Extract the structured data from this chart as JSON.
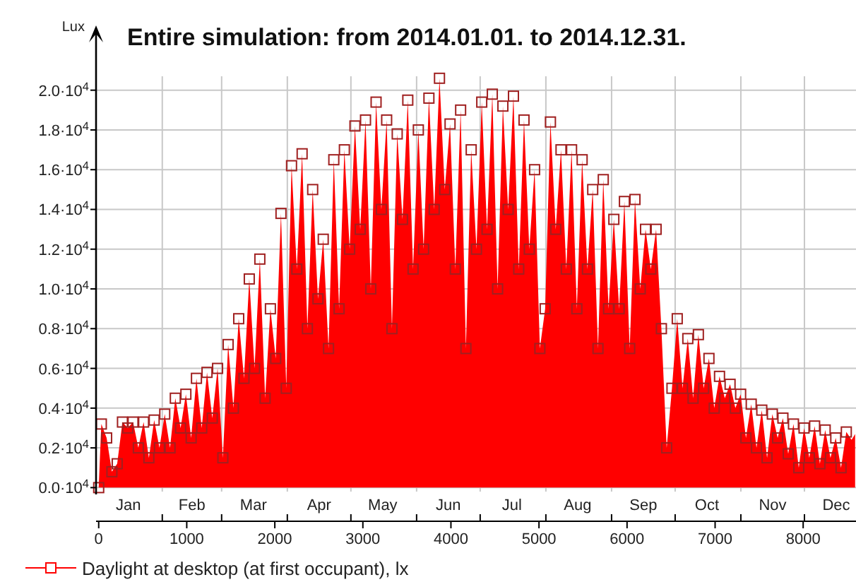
{
  "chart_data": {
    "type": "area",
    "title": "Entire simulation: from 2014.01.01. to 2014.12.31.",
    "ylabel": "Lux",
    "x": [
      0,
      30,
      90,
      150,
      210,
      270,
      330,
      390,
      450,
      510,
      570,
      630,
      690,
      750,
      810,
      870,
      930,
      990,
      1050,
      1110,
      1170,
      1230,
      1290,
      1350,
      1410,
      1470,
      1530,
      1590,
      1650,
      1710,
      1770,
      1830,
      1890,
      1950,
      2010,
      2070,
      2130,
      2190,
      2250,
      2310,
      2370,
      2430,
      2490,
      2550,
      2610,
      2670,
      2730,
      2790,
      2850,
      2910,
      2970,
      3030,
      3090,
      3150,
      3210,
      3270,
      3330,
      3390,
      3450,
      3510,
      3570,
      3630,
      3690,
      3750,
      3810,
      3870,
      3930,
      3990,
      4050,
      4110,
      4170,
      4230,
      4290,
      4350,
      4410,
      4470,
      4530,
      4590,
      4650,
      4710,
      4770,
      4830,
      4890,
      4950,
      5010,
      5070,
      5130,
      5190,
      5250,
      5310,
      5370,
      5430,
      5490,
      5550,
      5610,
      5670,
      5730,
      5790,
      5850,
      5910,
      5970,
      6030,
      6090,
      6150,
      6210,
      6270,
      6330,
      6390,
      6450,
      6510,
      6570,
      6630,
      6690,
      6750,
      6810,
      6870,
      6930,
      6990,
      7050,
      7110,
      7170,
      7230,
      7290,
      7350,
      7410,
      7470,
      7530,
      7590,
      7650,
      7710,
      7770,
      7830,
      7890,
      7950,
      8010,
      8070,
      8130,
      8190,
      8250,
      8310,
      8370,
      8430,
      8490,
      8550,
      8590
    ],
    "series": [
      {
        "name": "Daylight at desktop (at first occupant), lx",
        "color": "#ff0000",
        "values": [
          0,
          3200,
          2500,
          800,
          1200,
          3300,
          3000,
          3300,
          2000,
          3300,
          1500,
          3400,
          2000,
          3700,
          2000,
          4500,
          3000,
          4700,
          2500,
          5500,
          3000,
          5800,
          3500,
          6000,
          1500,
          7200,
          4000,
          8500,
          5500,
          10500,
          6000,
          11500,
          4500,
          9000,
          6500,
          13800,
          5000,
          16200,
          11000,
          16800,
          8000,
          15000,
          9500,
          12500,
          7000,
          16500,
          9000,
          17000,
          12000,
          18200,
          13000,
          18500,
          10000,
          19400,
          14000,
          18500,
          8000,
          17800,
          13500,
          19500,
          11000,
          18000,
          12000,
          19600,
          14000,
          20600,
          15000,
          18300,
          11000,
          19000,
          7000,
          17000,
          12000,
          19400,
          13000,
          19800,
          10000,
          19200,
          14000,
          19700,
          11000,
          18500,
          12000,
          16000,
          7000,
          9000,
          18400,
          13000,
          17000,
          11000,
          17000,
          9000,
          16500,
          11000,
          15000,
          7000,
          15500,
          9000,
          13500,
          9000,
          14400,
          7000,
          14500,
          10000,
          13000,
          11000,
          13000,
          8000,
          2000,
          5000,
          8500,
          5000,
          7500,
          4500,
          7700,
          5000,
          6500,
          4000,
          5600,
          4500,
          5200,
          4000,
          4700,
          2500,
          4200,
          2000,
          3900,
          1500,
          3700,
          2500,
          3500,
          1700,
          3200,
          1000,
          3000,
          1500,
          3100,
          1200,
          2900,
          1500,
          2500,
          1000,
          2800,
          2400,
          2700
        ]
      }
    ],
    "xlim": [
      -30,
      8600
    ],
    "xticks": [
      0,
      1000,
      2000,
      3000,
      4000,
      5000,
      6000,
      7000,
      8000
    ],
    "x2lim": [
      "2013-12-31T18:00",
      "2014-12-25T08:00"
    ],
    "x2ticks": [
      {
        "value": "2014-02-01",
        "label": null
      },
      {
        "value": "2014-03-01",
        "label": null
      },
      {
        "value": "2014-04-01",
        "label": null
      },
      {
        "value": "2014-05-01",
        "label": null
      },
      {
        "value": "2014-06-01",
        "label": null
      },
      {
        "value": "2014-07-01",
        "label": null
      },
      {
        "value": "2014-08-01",
        "label": null
      },
      {
        "value": "2014-09-01",
        "label": null
      },
      {
        "value": "2014-10-01",
        "label": null
      },
      {
        "value": "2014-11-01",
        "label": null
      },
      {
        "value": "2014-12-01",
        "label": null
      },
      {
        "value": "2014-01-16",
        "label": "Jan"
      },
      {
        "value": "2014-02-15",
        "label": "Feb"
      },
      {
        "value": "2014-03-16",
        "label": "Mar"
      },
      {
        "value": "2014-04-16",
        "label": "Apr"
      },
      {
        "value": "2014-05-16",
        "label": "May"
      },
      {
        "value": "2014-06-16",
        "label": "Jun"
      },
      {
        "value": "2014-07-16",
        "label": "Jul"
      },
      {
        "value": "2014-08-16",
        "label": "Aug"
      },
      {
        "value": "2014-09-16",
        "label": "Sep"
      },
      {
        "value": "2014-10-16",
        "label": "Oct"
      },
      {
        "value": "2014-11-16",
        "label": "Nov"
      },
      {
        "value": "2014-12-16",
        "label": "Dec"
      }
    ],
    "ylim": [
      -200,
      20700
    ],
    "yticks": [
      {
        "value": 0,
        "label": "0.0·10$^{4}$"
      },
      {
        "value": 2000,
        "label": "0.2·10$^{4}$"
      },
      {
        "value": 4000,
        "label": "0.4·10$^{4}$"
      },
      {
        "value": 6000,
        "label": "0.6·10$^{4}$"
      },
      {
        "value": 8000,
        "label": "0.8·10$^{4}$"
      },
      {
        "value": 10000,
        "label": "1.0·10$^{4}$"
      },
      {
        "value": 12000,
        "label": "1.2·10$^{4}$"
      },
      {
        "value": 14000,
        "label": "1.4·10$^{4}$"
      },
      {
        "value": 16000,
        "label": "1.6·10$^{4}$"
      },
      {
        "value": 18000,
        "label": "1.8·10$^{4}$"
      },
      {
        "value": 20000,
        "label": "2.0·10$^{4}$"
      }
    ],
    "grid": true,
    "legend": "bottom left",
    "marker": "square"
  }
}
